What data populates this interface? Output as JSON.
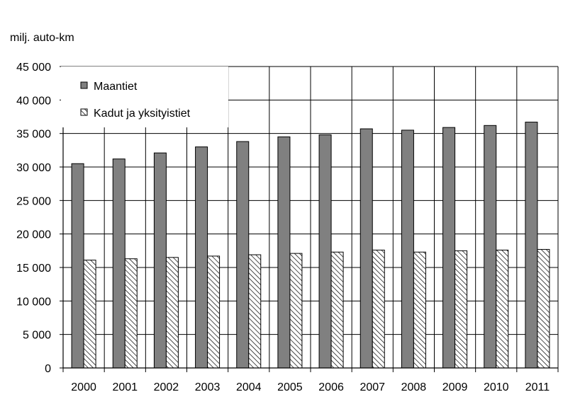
{
  "chart_data": {
    "type": "bar",
    "ylabel": "milj. auto-km",
    "categories": [
      "2000",
      "2001",
      "2002",
      "2003",
      "2004",
      "2005",
      "2006",
      "2007",
      "2008",
      "2009",
      "2010",
      "2011"
    ],
    "series": [
      {
        "name": "Maantiet",
        "values": [
          30500,
          31200,
          32100,
          33000,
          33800,
          34500,
          34800,
          35700,
          35500,
          35900,
          36200,
          36700
        ],
        "color": "#808080",
        "fill": "solid"
      },
      {
        "name": "Kadut ja yksityistiet",
        "values": [
          16100,
          16300,
          16500,
          16700,
          16900,
          17100,
          17300,
          17600,
          17300,
          17500,
          17600,
          17700
        ],
        "color": "#ffffff",
        "fill": "hatched"
      }
    ],
    "ylim": [
      0,
      45000
    ],
    "yticks": [
      0,
      5000,
      10000,
      15000,
      20000,
      25000,
      30000,
      35000,
      40000,
      45000
    ],
    "ytick_labels": [
      "0",
      "5 000",
      "10 000",
      "15 000",
      "20 000",
      "25 000",
      "30 000",
      "35 000",
      "40 000",
      "45 000"
    ],
    "grid": {
      "horizontal": true,
      "vertical": true
    },
    "legend": "top-left"
  }
}
